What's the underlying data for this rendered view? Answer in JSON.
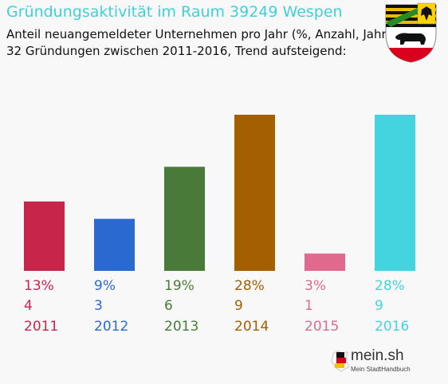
{
  "title": "Gründungsaktivität im Raum 39249 Wespen",
  "subtitle_line1": "Anteil neuangemeldeter Unternehmen pro Jahr (%, Anzahl, Jahr)",
  "subtitle_line2": "32 Gründungen zwischen 2011-2016, Trend aufsteigend:",
  "logo": {
    "name": "mein.sh",
    "tagline": "Mein StadtHandbuch"
  },
  "chart_data": {
    "type": "bar",
    "categories": [
      "2011",
      "2012",
      "2013",
      "2014",
      "2015",
      "2016"
    ],
    "values": [
      4,
      3,
      6,
      9,
      1,
      9
    ],
    "percent_labels": [
      "13%",
      "9%",
      "19%",
      "28%",
      "3%",
      "28%"
    ],
    "count_labels": [
      "4",
      "3",
      "6",
      "9",
      "1",
      "9"
    ],
    "colors": [
      "#c8254a",
      "#2a6ad0",
      "#4a7a3a",
      "#a46000",
      "#e06a8e",
      "#44d4e0"
    ],
    "title": "Gründungsaktivität im Raum 39249 Wespen",
    "xlabel": "",
    "ylabel": "",
    "ylim": [
      0,
      9
    ],
    "grid": false,
    "legend": "none"
  }
}
